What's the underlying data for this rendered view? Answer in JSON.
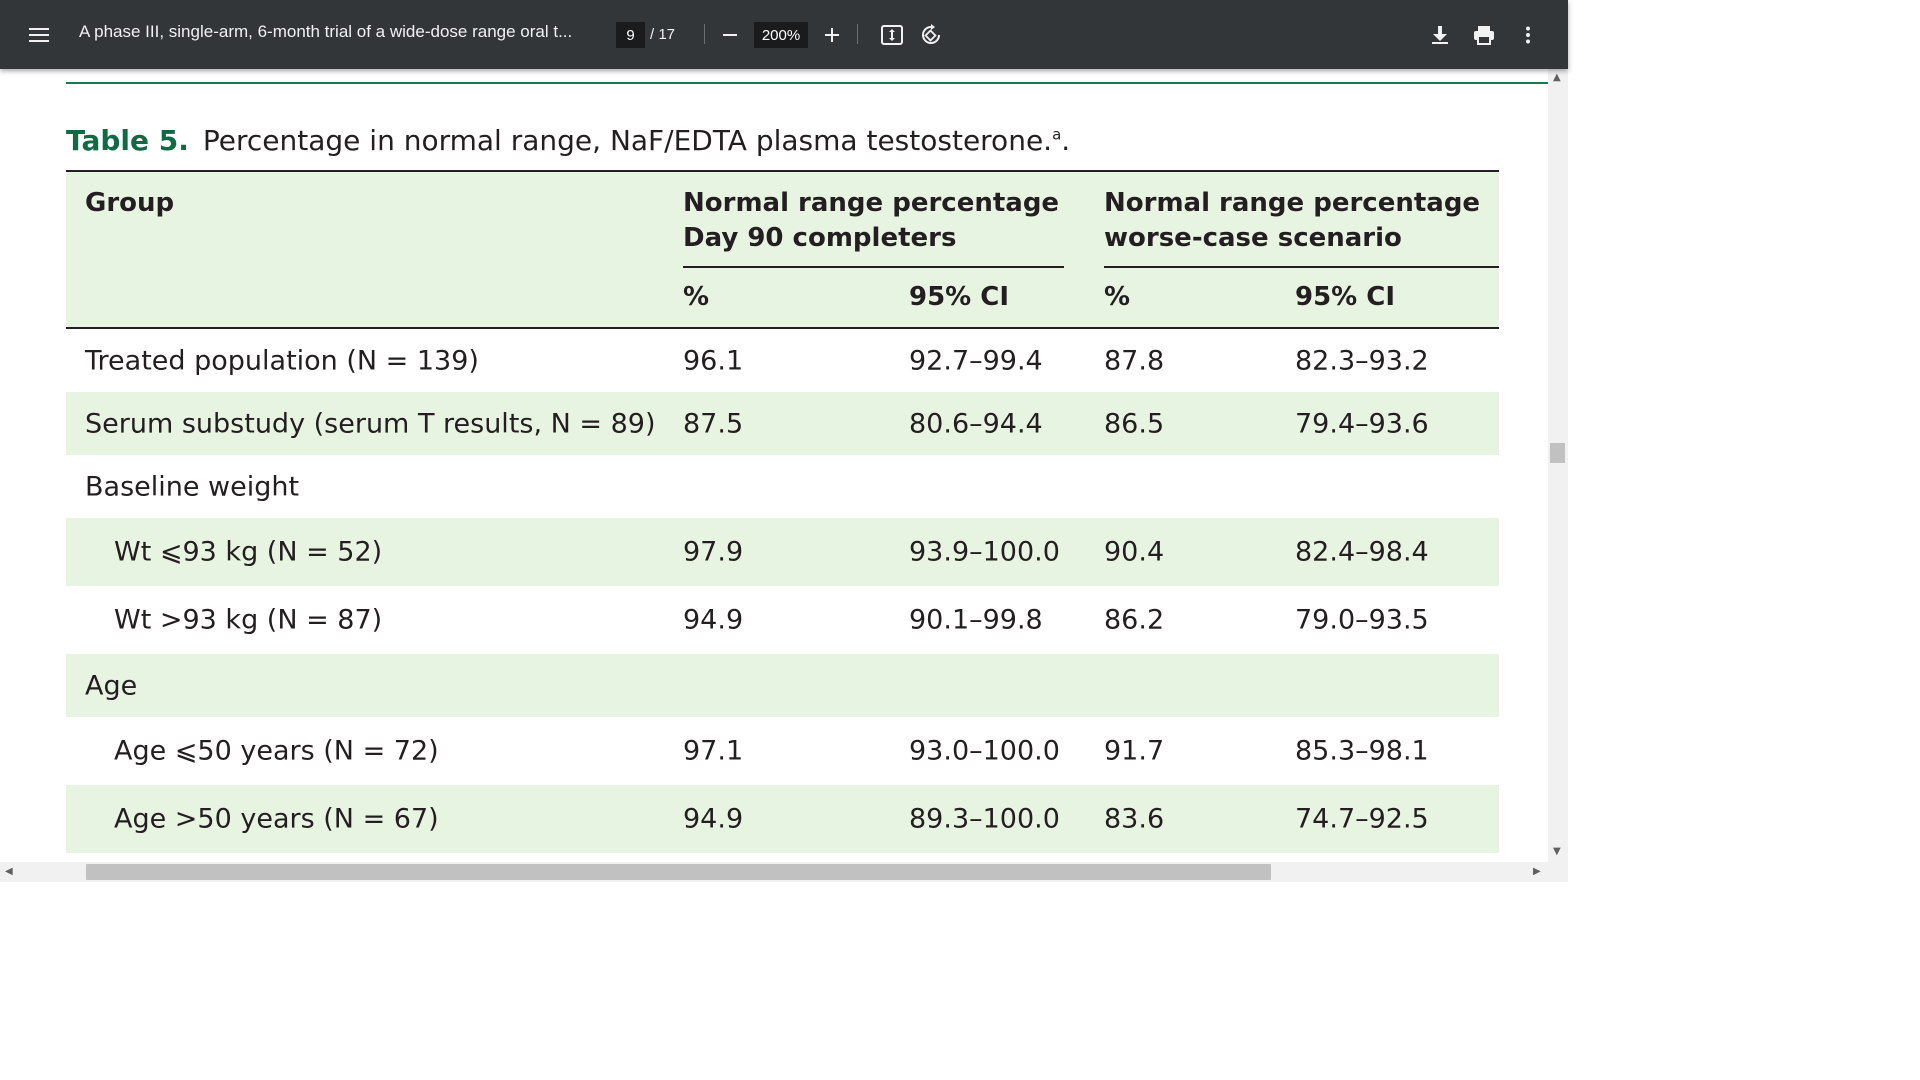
{
  "toolbar": {
    "menu_icon": "hamburger-menu-icon",
    "title": "A phase III, single-arm, 6-month trial of a wide-dose range oral t...",
    "page_current": "9",
    "page_total": "/ 17",
    "zoom": "200%",
    "icons": [
      "zoom-out-icon",
      "zoom-in-icon",
      "fit-page-icon",
      "rotate-icon",
      "download-icon",
      "print-icon",
      "more-options-icon"
    ]
  },
  "document": {
    "table_label": "Table 5.",
    "table_caption": "Percentage in normal range, NaF/EDTA plasma testosterone.",
    "caption_sup": "a",
    "caption_end": ".",
    "headers": {
      "group": "Group",
      "col_a_line1": "Normal range percentage",
      "col_a_line2": "Day 90 completers",
      "col_b_line1": "Normal range percentage",
      "col_b_line2": "worse-case scenario",
      "pct_a": "%",
      "ci_a": "95% CI",
      "pct_b": "%",
      "ci_b": "95% CI"
    },
    "rows": [
      {
        "group": "Treated population (N = 139)",
        "pct1": "96.1",
        "ci1": "92.7–99.4",
        "pct2": "87.8",
        "ci2": "82.3–93.2"
      },
      {
        "group": "Serum substudy (serum T results, N = 89)",
        "pct1": "87.5",
        "ci1": "80.6–94.4",
        "pct2": "86.5",
        "ci2": "79.4–93.6"
      },
      {
        "group": "Baseline weight",
        "pct1": "",
        "ci1": "",
        "pct2": "",
        "ci2": ""
      },
      {
        "group": "Wt ⩽93 kg (N = 52)",
        "pct1": "97.9",
        "ci1": "93.9–100.0",
        "pct2": "90.4",
        "ci2": "82.4–98.4"
      },
      {
        "group": "Wt >93 kg (N = 87)",
        "pct1": "94.9",
        "ci1": "90.1–99.8",
        "pct2": "86.2",
        "ci2": "79.0–93.5"
      },
      {
        "group": "Age",
        "pct1": "",
        "ci1": "",
        "pct2": "",
        "ci2": ""
      },
      {
        "group": "Age ⩽50 years (N = 72)",
        "pct1": "97.1",
        "ci1": "93.0–100.0",
        "pct2": "91.7",
        "ci2": "85.3–98.1"
      },
      {
        "group": "Age >50 years (N = 67)",
        "pct1": "94.9",
        "ci1": "89.3–100.0",
        "pct2": "83.6",
        "ci2": "74.7–92.5"
      }
    ]
  },
  "colors": {
    "toolbar_bg": "#323639",
    "accent_green": "#0e6b43",
    "row_shade": "#e8f4e2"
  }
}
